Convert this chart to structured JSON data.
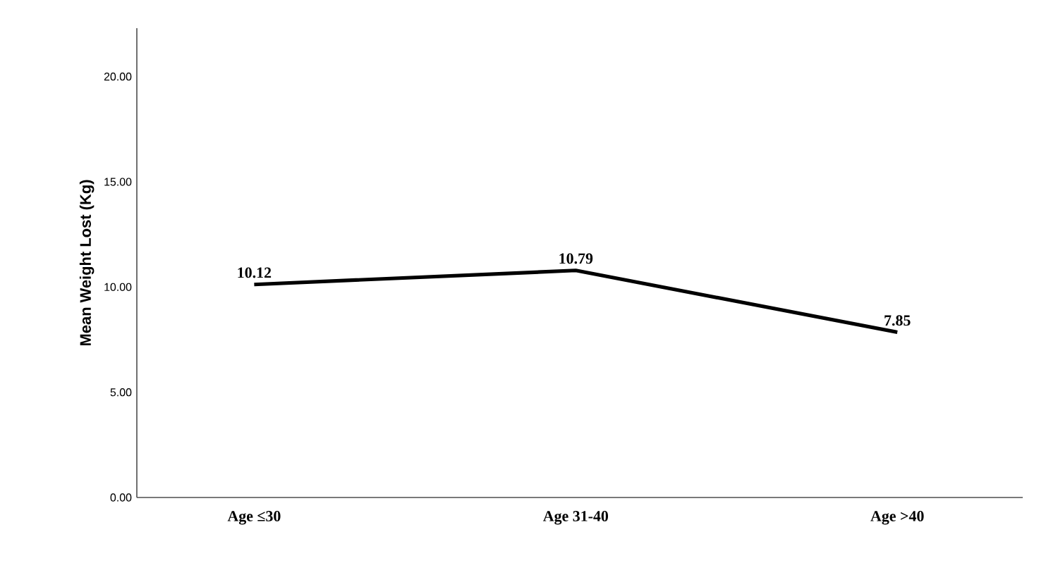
{
  "chart_data": {
    "type": "line",
    "ylabel": "Mean Weight Lost (Kg)",
    "categories": [
      "Age ≤30",
      "Age 31-40",
      "Age >40"
    ],
    "series": [
      {
        "color": "#000000",
        "values": [
          10.12,
          10.79,
          7.85
        ]
      }
    ],
    "ylim": [
      0,
      22.3
    ],
    "yticks": [
      {
        "value": 0,
        "label": "0.00"
      },
      {
        "value": 5,
        "label": "5.00"
      },
      {
        "value": 10,
        "label": "10.00"
      },
      {
        "value": 15,
        "label": "15.00"
      },
      {
        "value": 20,
        "label": "20.00"
      }
    ],
    "data_labels": true,
    "grid": false,
    "marker": "none",
    "line_style": "solid"
  }
}
